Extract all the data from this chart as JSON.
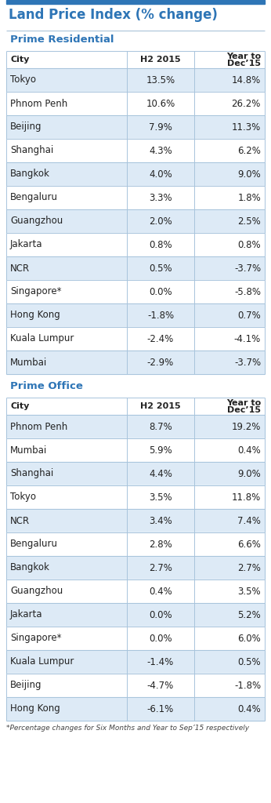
{
  "title": "Land Price Index (% change)",
  "title_color": "#2E75B6",
  "top_bar_color": "#2E75B6",
  "section1_header": "Prime Residential",
  "section2_header": "Prime Office",
  "residential": [
    [
      "Tokyo",
      "13.5%",
      "14.8%"
    ],
    [
      "Phnom Penh",
      "10.6%",
      "26.2%"
    ],
    [
      "Beijing",
      "7.9%",
      "11.3%"
    ],
    [
      "Shanghai",
      "4.3%",
      "6.2%"
    ],
    [
      "Bangkok",
      "4.0%",
      "9.0%"
    ],
    [
      "Bengaluru",
      "3.3%",
      "1.8%"
    ],
    [
      "Guangzhou",
      "2.0%",
      "2.5%"
    ],
    [
      "Jakarta",
      "0.8%",
      "0.8%"
    ],
    [
      "NCR",
      "0.5%",
      "-3.7%"
    ],
    [
      "Singapore*",
      "0.0%",
      "-5.8%"
    ],
    [
      "Hong Kong",
      "-1.8%",
      "0.7%"
    ],
    [
      "Kuala Lumpur",
      "-2.4%",
      "-4.1%"
    ],
    [
      "Mumbai",
      "-2.9%",
      "-3.7%"
    ]
  ],
  "office": [
    [
      "Phnom Penh",
      "8.7%",
      "19.2%"
    ],
    [
      "Mumbai",
      "5.9%",
      "0.4%"
    ],
    [
      "Shanghai",
      "4.4%",
      "9.0%"
    ],
    [
      "Tokyo",
      "3.5%",
      "11.8%"
    ],
    [
      "NCR",
      "3.4%",
      "7.4%"
    ],
    [
      "Bengaluru",
      "2.8%",
      "6.6%"
    ],
    [
      "Bangkok",
      "2.7%",
      "2.7%"
    ],
    [
      "Guangzhou",
      "0.4%",
      "3.5%"
    ],
    [
      "Jakarta",
      "0.0%",
      "5.2%"
    ],
    [
      "Singapore*",
      "0.0%",
      "6.0%"
    ],
    [
      "Kuala Lumpur",
      "-1.4%",
      "0.5%"
    ],
    [
      "Beijing",
      "-4.7%",
      "-1.8%"
    ],
    [
      "Hong Kong",
      "-6.1%",
      "0.4%"
    ]
  ],
  "footnote": "*Percentage changes for Six Months and Year to Sep’15 respectively",
  "bg_color": "#FFFFFF",
  "row_even_color": "#DDEAF6",
  "row_odd_color": "#FFFFFF",
  "border_color": "#A8C4DC",
  "section_color": "#2E75B6",
  "text_color": "#222222",
  "top_bar_height": 5,
  "title_fontsize": 12,
  "section_fontsize": 9.5,
  "header_fontsize": 8,
  "row_fontsize": 8.5,
  "footnote_fontsize": 6.5
}
